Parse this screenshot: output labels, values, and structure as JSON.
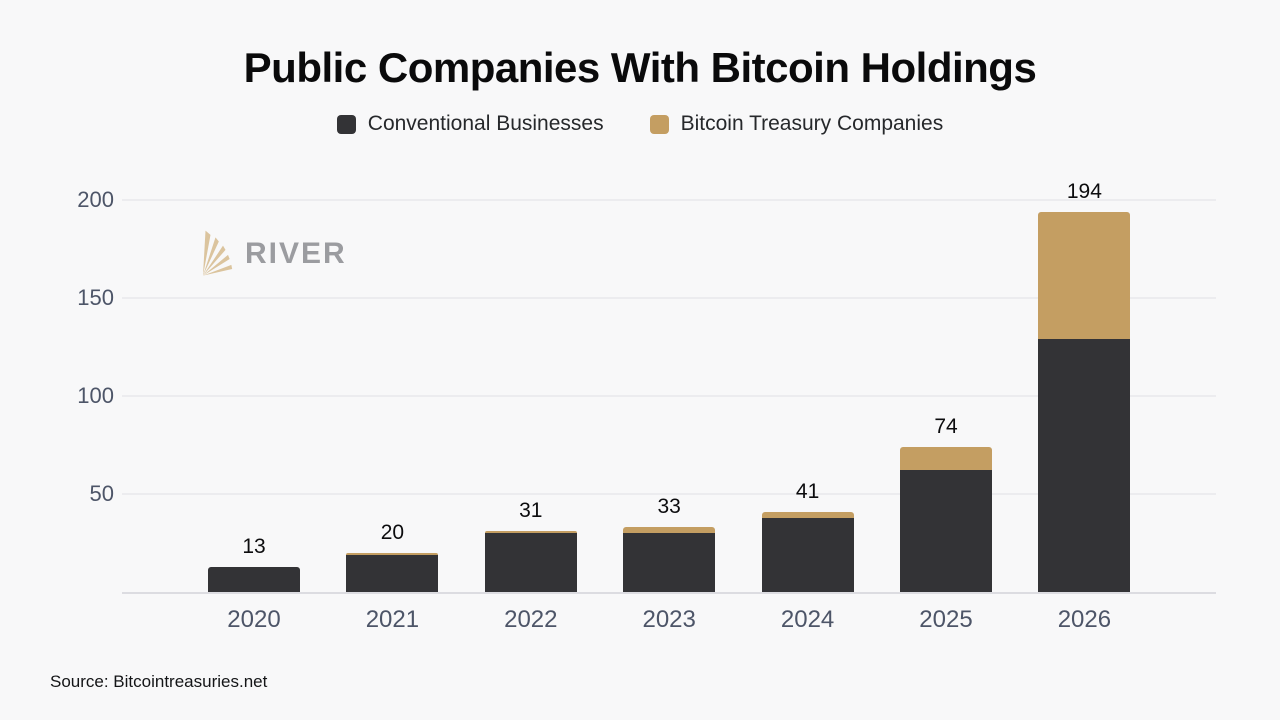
{
  "title": "Public Companies With Bitcoin Holdings",
  "legend": [
    {
      "label": "Conventional Businesses",
      "color": "#333336"
    },
    {
      "label": "Bitcoin Treasury Companies",
      "color": "#c49e62"
    }
  ],
  "watermark": {
    "brand": "RIVER",
    "mark_color": "#dbc49e",
    "text_color": "#9b9ca0"
  },
  "source": "Source: Bitcointreasuries.net",
  "colors": {
    "background": "#f8f8f9",
    "conventional": "#333336",
    "treasury": "#c49e62",
    "tick_label": "#4d5568",
    "gridline": "#ececef",
    "baseline": "#dcdce1",
    "value_label": "#0c0c0e"
  },
  "chart_data": {
    "type": "bar",
    "stacked": true,
    "title": "Public Companies With Bitcoin Holdings",
    "categories": [
      "2020",
      "2021",
      "2022",
      "2023",
      "2024",
      "2025",
      "2026"
    ],
    "series": [
      {
        "name": "Conventional Businesses",
        "color": "#333336",
        "values": [
          13,
          19,
          30,
          30,
          38,
          62,
          129
        ]
      },
      {
        "name": "Bitcoin Treasury Companies",
        "color": "#c49e62",
        "values": [
          0,
          1,
          1,
          3,
          3,
          12,
          65
        ]
      }
    ],
    "totals": [
      13,
      20,
      31,
      33,
      41,
      74,
      194
    ],
    "xlabel": "",
    "ylabel": "",
    "ylim": [
      0,
      200
    ],
    "yticks": [
      50,
      100,
      150,
      200
    ],
    "grid": true,
    "legend_position": "top",
    "source": "Source: Bitcointreasuries.net"
  }
}
